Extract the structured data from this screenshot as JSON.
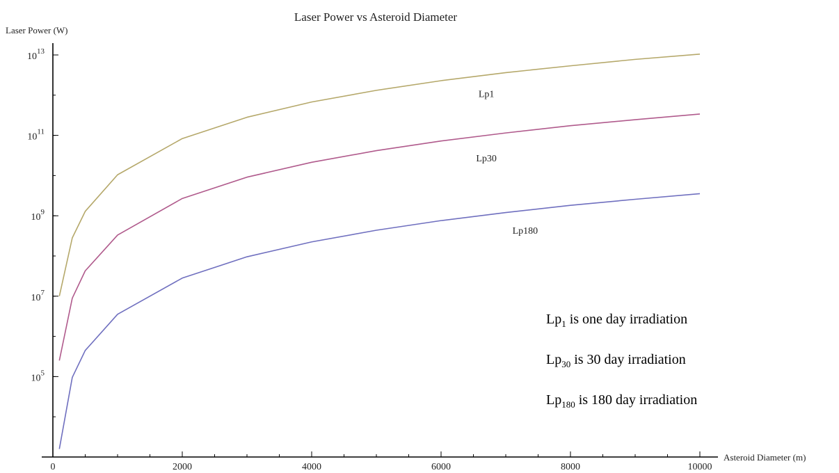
{
  "chart_data": {
    "type": "line",
    "title": "Laser Power vs Asteroid Diameter",
    "xlabel": "Asteroid Diameter (m)",
    "ylabel": "Laser Power (W)",
    "xlim": [
      0,
      10000
    ],
    "ylim_log10": [
      3,
      13
    ],
    "yscale": "log",
    "x_ticks": [
      0,
      2000,
      4000,
      6000,
      8000,
      10000
    ],
    "y_ticks": [
      {
        "base": "10",
        "exp": "5",
        "value": 100000
      },
      {
        "base": "10",
        "exp": "7",
        "value": 10000000
      },
      {
        "base": "10",
        "exp": "9",
        "value": 1000000000
      },
      {
        "base": "10",
        "exp": "11",
        "value": 100000000000
      },
      {
        "base": "10",
        "exp": "13",
        "value": 10000000000000
      }
    ],
    "grid": false,
    "series": [
      {
        "name": "Lp1",
        "color": "#b5a86a",
        "x": [
          100,
          300,
          500,
          1000,
          2000,
          3000,
          4000,
          5000,
          6000,
          7000,
          8000,
          9000,
          10000
        ],
        "log10_y": [
          7.0,
          8.45,
          9.11,
          10.02,
          10.92,
          11.45,
          11.83,
          12.12,
          12.36,
          12.56,
          12.73,
          12.89,
          13.02
        ]
      },
      {
        "name": "Lp30",
        "color": "#b05a8c",
        "x": [
          100,
          300,
          500,
          1000,
          2000,
          3000,
          4000,
          5000,
          6000,
          7000,
          8000,
          9000,
          10000
        ],
        "log10_y": [
          5.4,
          6.95,
          7.63,
          8.52,
          9.43,
          9.96,
          10.33,
          10.62,
          10.86,
          11.06,
          11.24,
          11.39,
          11.53
        ]
      },
      {
        "name": "Lp180",
        "color": "#6f6fbf",
        "x": [
          100,
          300,
          500,
          1000,
          2000,
          3000,
          4000,
          5000,
          6000,
          7000,
          8000,
          9000,
          10000
        ],
        "log10_y": [
          3.2,
          4.98,
          5.65,
          6.55,
          7.45,
          7.98,
          8.35,
          8.64,
          8.88,
          9.08,
          9.26,
          9.41,
          9.55
        ]
      }
    ],
    "curve_labels": [
      {
        "text": "Lp1",
        "x": 6700,
        "log10_y": 11.95
      },
      {
        "text": "Lp30",
        "x": 6700,
        "log10_y": 10.35
      },
      {
        "text": "Lp180",
        "x": 7300,
        "log10_y": 8.55
      }
    ],
    "annotations": [
      {
        "base": "Lp",
        "sub": "1",
        "rest": " is one day irradiation"
      },
      {
        "base": "Lp",
        "sub": "30",
        "rest": " is 30 day irradiation"
      },
      {
        "base": "Lp",
        "sub": "180",
        "rest": " is 180 day irradiation"
      }
    ]
  }
}
